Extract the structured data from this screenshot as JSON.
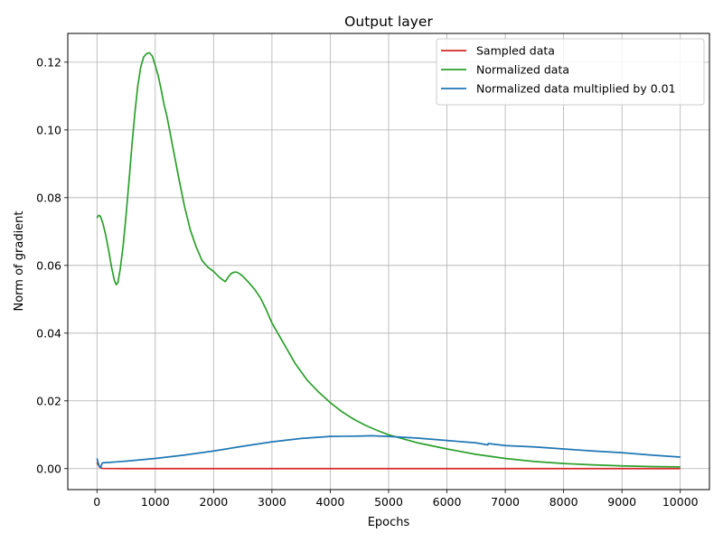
{
  "chart_data": {
    "type": "line",
    "title": "Output layer",
    "xlabel": "Epochs",
    "ylabel": "Norm of gradient",
    "xlim": [
      -500,
      10500
    ],
    "ylim": [
      -0.0062,
      0.1285
    ],
    "xticks": [
      0,
      1000,
      2000,
      3000,
      4000,
      5000,
      6000,
      7000,
      8000,
      9000,
      10000
    ],
    "xtick_labels": [
      "0",
      "1000",
      "2000",
      "3000",
      "4000",
      "5000",
      "6000",
      "7000",
      "8000",
      "9000",
      "10000"
    ],
    "yticks": [
      0.0,
      0.02,
      0.04,
      0.06,
      0.08,
      0.1,
      0.12
    ],
    "ytick_labels": [
      "0.00",
      "0.02",
      "0.04",
      "0.06",
      "0.08",
      "0.10",
      "0.12"
    ],
    "grid": true,
    "legend_position": "top-right",
    "series": [
      {
        "name": "Sampled data",
        "color": "#d62728",
        "x": [
          0,
          20,
          50,
          80,
          100,
          200,
          500,
          1000,
          2000,
          5000,
          10000
        ],
        "y": [
          0.0018,
          0.0012,
          0.0004,
          0.0001,
          5e-05,
          2e-05,
          1e-05,
          1e-05,
          1e-05,
          1e-05,
          1e-05
        ]
      },
      {
        "name": "Normalized data",
        "color": "#2ca02c",
        "x": [
          0,
          30,
          60,
          100,
          150,
          200,
          250,
          300,
          330,
          360,
          400,
          450,
          500,
          550,
          600,
          650,
          700,
          750,
          800,
          850,
          900,
          950,
          1000,
          1050,
          1100,
          1150,
          1200,
          1250,
          1300,
          1400,
          1500,
          1600,
          1700,
          1800,
          1900,
          2000,
          2100,
          2150,
          2200,
          2250,
          2300,
          2350,
          2400,
          2450,
          2500,
          2600,
          2700,
          2800,
          2900,
          3000,
          3200,
          3400,
          3600,
          3800,
          4000,
          4200,
          4400,
          4600,
          4800,
          5000,
          5500,
          6000,
          6500,
          7000,
          7500,
          8000,
          8500,
          9000,
          9500,
          10000
        ],
        "y": [
          0.074,
          0.0748,
          0.0745,
          0.0725,
          0.069,
          0.0645,
          0.0595,
          0.0555,
          0.0543,
          0.055,
          0.059,
          0.066,
          0.075,
          0.085,
          0.0955,
          0.105,
          0.113,
          0.1185,
          0.1215,
          0.1225,
          0.1228,
          0.1218,
          0.119,
          0.116,
          0.112,
          0.1075,
          0.104,
          0.0995,
          0.095,
          0.086,
          0.0775,
          0.0705,
          0.0655,
          0.0615,
          0.0595,
          0.0582,
          0.0565,
          0.0558,
          0.0552,
          0.0565,
          0.0576,
          0.058,
          0.058,
          0.0575,
          0.0568,
          0.055,
          0.053,
          0.0505,
          0.047,
          0.043,
          0.037,
          0.031,
          0.0262,
          0.0226,
          0.0195,
          0.0168,
          0.0146,
          0.0128,
          0.0113,
          0.01,
          0.0076,
          0.0058,
          0.0042,
          0.003,
          0.0021,
          0.0015,
          0.0011,
          0.0008,
          0.0006,
          0.0005
        ]
      },
      {
        "name": "Normalized data multiplied by 0.01",
        "color": "#1f77b4",
        "x": [
          0,
          20,
          40,
          60,
          70,
          80,
          90,
          100,
          500,
          1000,
          1500,
          2000,
          2500,
          3000,
          3500,
          4000,
          4500,
          4700,
          5000,
          5500,
          6000,
          6500,
          6700,
          6710,
          7000,
          7500,
          8000,
          8500,
          9000,
          9500,
          10000
        ],
        "y": [
          0.003,
          0.0018,
          0.0007,
          0.0003,
          0.0006,
          0.0012,
          0.0016,
          0.0017,
          0.0022,
          0.003,
          0.004,
          0.0052,
          0.0066,
          0.0079,
          0.0089,
          0.0095,
          0.0096,
          0.0097,
          0.0095,
          0.009,
          0.0083,
          0.0076,
          0.007,
          0.0074,
          0.0068,
          0.0064,
          0.0058,
          0.0052,
          0.0047,
          0.004,
          0.0034
        ]
      }
    ]
  }
}
